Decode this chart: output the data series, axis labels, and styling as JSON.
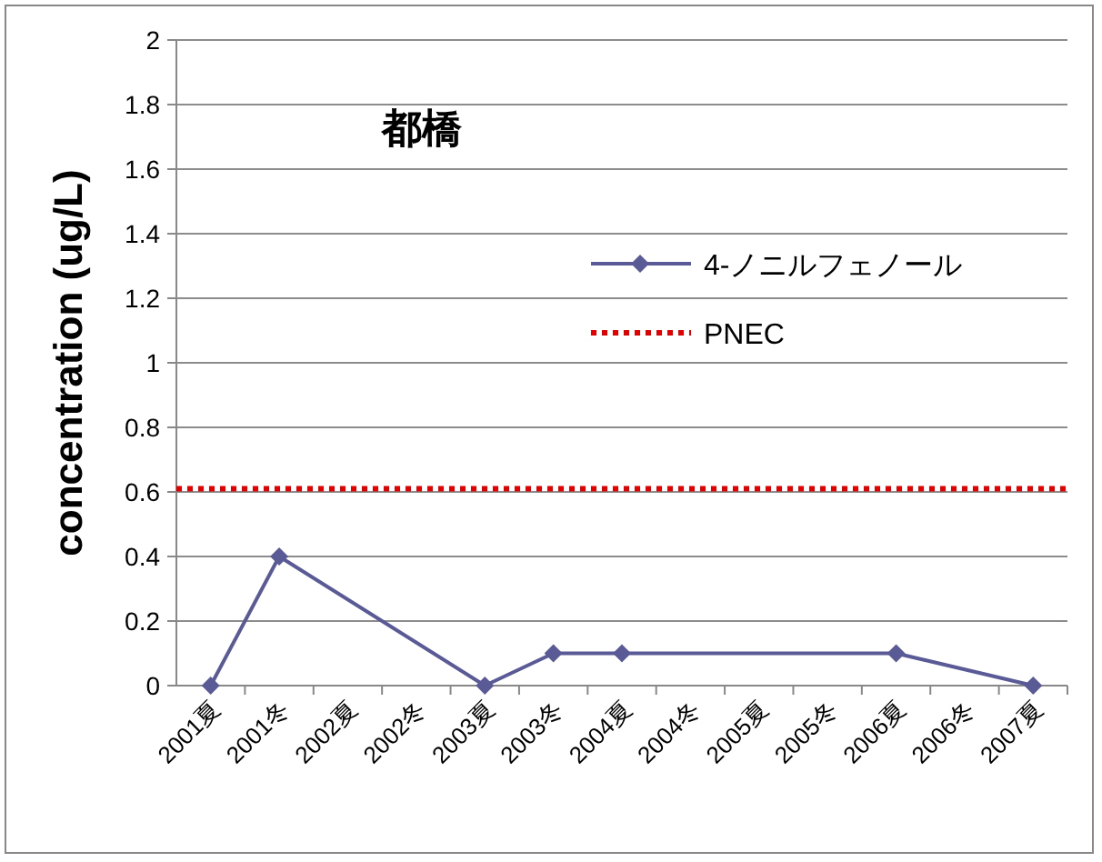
{
  "chart_data": {
    "type": "line",
    "title": "都橋",
    "ylabel": "concentration (ug/L)",
    "categories": [
      "2001夏",
      "2001冬",
      "2002夏",
      "2002冬",
      "2003夏",
      "2003冬",
      "2004夏",
      "2004冬",
      "2005夏",
      "2005冬",
      "2006夏",
      "2006冬",
      "2007夏"
    ],
    "series": [
      {
        "name": "4-ノニルフェノール",
        "color": "#5a5a96",
        "values": [
          0,
          0.4,
          null,
          null,
          0,
          0.1,
          0.1,
          null,
          null,
          null,
          0.1,
          null,
          0
        ]
      }
    ],
    "ref_lines": [
      {
        "axis": "y",
        "value": 0.61,
        "label": "PNEC",
        "color": "#e00000",
        "line_style": "dotted"
      }
    ],
    "ylim": [
      0,
      2
    ],
    "yticks": [
      0,
      0.2,
      0.4,
      0.6,
      0.8,
      1,
      1.2,
      1.4,
      1.6,
      1.8,
      2
    ],
    "grid": "y",
    "legend": "top right",
    "marker": "diamond",
    "line_style": "solid"
  }
}
